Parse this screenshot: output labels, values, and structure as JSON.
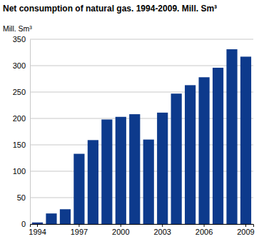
{
  "chart_data": {
    "type": "bar",
    "title": "Net consumption of natural gas. 1994-2009. Mill. Sm³",
    "y_label": "Mill. Sm³",
    "categories": [
      "1994",
      null,
      null,
      "1997",
      null,
      null,
      "2000",
      null,
      null,
      "2003",
      null,
      null,
      "2006",
      null,
      null,
      "2009"
    ],
    "values": [
      3,
      20,
      28,
      133,
      159,
      198,
      203,
      208,
      160,
      211,
      247,
      263,
      278,
      296,
      331,
      317
    ],
    "color": "#0d3a8c",
    "ylim": [
      0,
      350
    ],
    "yticks": [
      0,
      50,
      100,
      150,
      200,
      250,
      300,
      350
    ],
    "grid": true
  }
}
